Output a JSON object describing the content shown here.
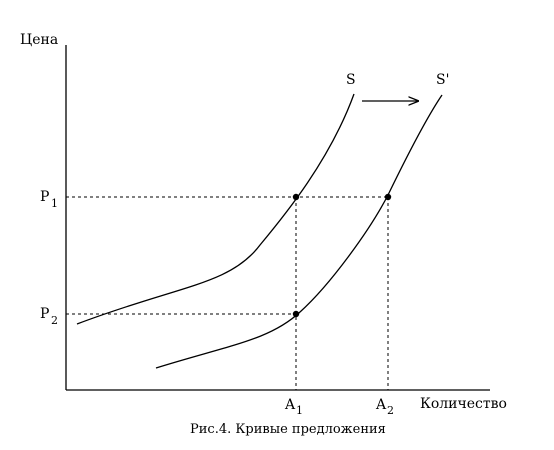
{
  "axes": {
    "y_label": "Цена",
    "x_label": "Количество"
  },
  "curves": {
    "s_label": "S",
    "s_prime_label": "S'"
  },
  "prices": {
    "p1_main": "P",
    "p1_sub": "1",
    "p2_main": "P",
    "p2_sub": "2"
  },
  "quantities": {
    "a1_main": "A",
    "a1_sub": "1",
    "a2_main": "A",
    "a2_sub": "2"
  },
  "caption": "Рис.4. Кривые предложения"
}
